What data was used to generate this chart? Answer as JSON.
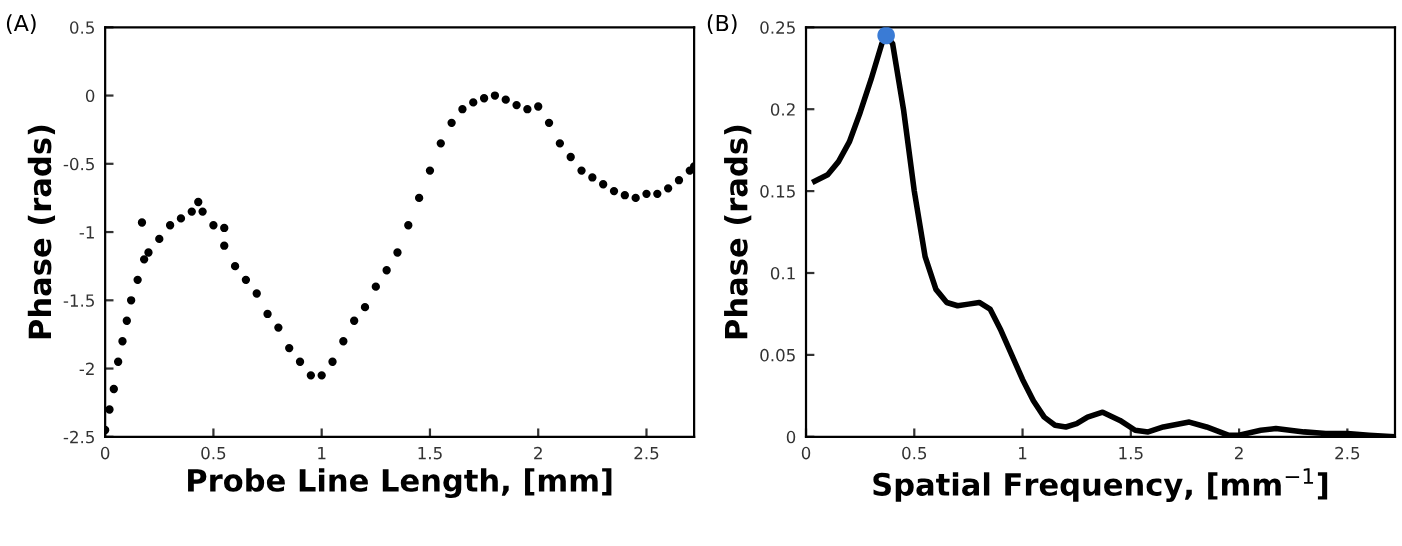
{
  "chart_data": [
    {
      "type": "scatter",
      "title": "(A)",
      "xlabel": "Probe Line Length, [mm]",
      "ylabel": "Phase (rads)",
      "marker": "circle",
      "grid": false,
      "legend": false,
      "xlim": [
        0,
        2.72
      ],
      "ylim": [
        -2.5,
        0.5
      ],
      "xticks": [
        0,
        0.5,
        1,
        1.5,
        2,
        2.5
      ],
      "yticks": [
        -2.5,
        -2,
        -1.5,
        -1,
        -0.5,
        0,
        0.5
      ],
      "series": [
        {
          "color": "#000000",
          "x": [
            0,
            0.02,
            0.04,
            0.06,
            0.08,
            0.1,
            0.12,
            0.15,
            0.17,
            0.18,
            0.2,
            0.25,
            0.3,
            0.35,
            0.4,
            0.43,
            0.45,
            0.5,
            0.55,
            0.55,
            0.6,
            0.65,
            0.7,
            0.75,
            0.8,
            0.85,
            0.9,
            0.95,
            1.0,
            1.05,
            1.1,
            1.15,
            1.2,
            1.25,
            1.3,
            1.35,
            1.4,
            1.45,
            1.5,
            1.55,
            1.6,
            1.65,
            1.7,
            1.75,
            1.8,
            1.85,
            1.9,
            1.95,
            2.0,
            2.05,
            2.1,
            2.15,
            2.2,
            2.25,
            2.3,
            2.35,
            2.4,
            2.45,
            2.5,
            2.55,
            2.6,
            2.65,
            2.7,
            2.72
          ],
          "values": [
            -2.45,
            -2.3,
            -2.15,
            -1.95,
            -1.8,
            -1.65,
            -1.5,
            -1.35,
            -0.93,
            -1.2,
            -1.15,
            -1.05,
            -0.95,
            -0.9,
            -0.85,
            -0.78,
            -0.85,
            -0.95,
            -1.1,
            -0.97,
            -1.25,
            -1.35,
            -1.45,
            -1.6,
            -1.7,
            -1.85,
            -1.95,
            -2.05,
            -2.05,
            -1.95,
            -1.8,
            -1.65,
            -1.55,
            -1.4,
            -1.28,
            -1.15,
            -0.95,
            -0.75,
            -0.55,
            -0.35,
            -0.2,
            -0.1,
            -0.05,
            -0.02,
            0.0,
            -0.03,
            -0.07,
            -0.1,
            -0.08,
            -0.2,
            -0.35,
            -0.45,
            -0.55,
            -0.6,
            -0.65,
            -0.7,
            -0.73,
            -0.75,
            -0.72,
            -0.72,
            -0.68,
            -0.62,
            -0.55,
            -0.52
          ]
        }
      ]
    },
    {
      "type": "line",
      "title": "(B)",
      "xlabel": "Spatial Frequency, [mm$^{−1}$]",
      "ylabel": "Phase (rads)",
      "grid": false,
      "legend": false,
      "marker": "none",
      "line_style": "solid",
      "xlim": [
        0,
        2.72
      ],
      "ylim": [
        0,
        0.25
      ],
      "xticks": [
        0,
        0.5,
        1,
        1.5,
        2,
        2.5
      ],
      "yticks": [
        0,
        0.05,
        0.1,
        0.15,
        0.2,
        0.25
      ],
      "series": [
        {
          "color": "#000000",
          "x": [
            0.04,
            0.1,
            0.15,
            0.2,
            0.25,
            0.3,
            0.35,
            0.37,
            0.4,
            0.45,
            0.5,
            0.55,
            0.6,
            0.65,
            0.7,
            0.75,
            0.8,
            0.85,
            0.9,
            0.95,
            1.0,
            1.05,
            1.1,
            1.15,
            1.2,
            1.25,
            1.3,
            1.37,
            1.45,
            1.52,
            1.58,
            1.65,
            1.77,
            1.85,
            1.95,
            2.0,
            2.1,
            2.17,
            2.3,
            2.4,
            2.5,
            2.6,
            2.72
          ],
          "values": [
            0.156,
            0.16,
            0.168,
            0.18,
            0.198,
            0.218,
            0.24,
            0.245,
            0.24,
            0.2,
            0.15,
            0.11,
            0.09,
            0.082,
            0.08,
            0.081,
            0.082,
            0.078,
            0.065,
            0.05,
            0.035,
            0.022,
            0.012,
            0.007,
            0.006,
            0.008,
            0.012,
            0.015,
            0.01,
            0.004,
            0.003,
            0.006,
            0.009,
            0.006,
            0.001,
            0.001,
            0.004,
            0.005,
            0.003,
            0.002,
            0.002,
            0.001,
            0.0
          ]
        },
        {
          "type": "scatter",
          "color": "#3a7bd5",
          "marker": "circle",
          "x": [
            0.37
          ],
          "values": [
            0.245
          ]
        }
      ]
    }
  ]
}
